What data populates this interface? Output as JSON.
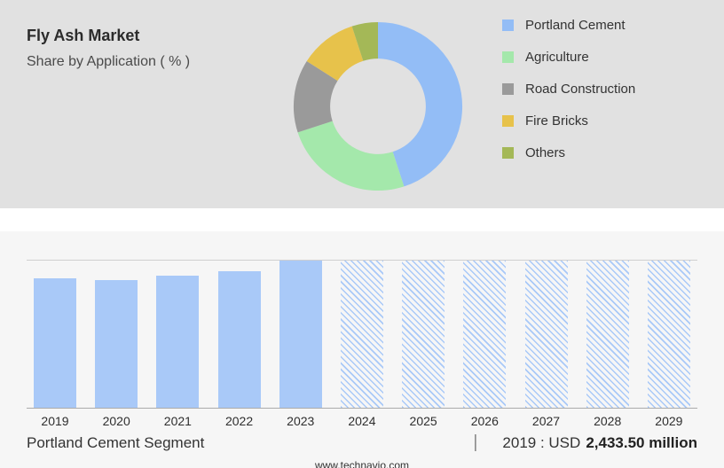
{
  "header": {
    "title": "Fly Ash Market",
    "subtitle": "Share by Application ( % )"
  },
  "chart_data": [
    {
      "type": "pie",
      "style": "donut",
      "title": "Fly Ash Market — Share by Application ( % )",
      "legend_position": "right",
      "segments": [
        {
          "label": "Portland Cement",
          "value": 45,
          "color": "#93bdf6"
        },
        {
          "label": "Agriculture",
          "value": 25,
          "color": "#a4e8ab"
        },
        {
          "label": "Road Construction",
          "value": 14,
          "color": "#9a9a9a"
        },
        {
          "label": "Fire Bricks",
          "value": 11,
          "color": "#e7c24b"
        },
        {
          "label": "Others",
          "value": 5,
          "color": "#a4b857"
        }
      ]
    },
    {
      "type": "bar",
      "categories": [
        "2019",
        "2020",
        "2021",
        "2022",
        "2023",
        "2024",
        "2025",
        "2026",
        "2027",
        "2028",
        "2029"
      ],
      "relative_heights": [
        0.88,
        0.865,
        0.9,
        0.93,
        1.0,
        1.0,
        1.0,
        1.0,
        1.0,
        1.0,
        1.0
      ],
      "forecast_categories": [
        "2024",
        "2025",
        "2026",
        "2027",
        "2028",
        "2029"
      ],
      "bar_color": "#a9c9f8",
      "values_note": "No y-axis shown; heights are fractions of the tallest (2023) bar. 2024-2029 are full-height hatched forecast bars.",
      "known_point": {
        "year": "2019",
        "label": "2019 : USD 2,433.50 million"
      },
      "xlabel": "",
      "ylabel": "",
      "grid": false
    }
  ],
  "footer_row": {
    "segment_label": "Portland Cement Segment",
    "separator": "|",
    "stat_prefix": "2019 : USD",
    "stat_value": "2,433.50 million"
  },
  "site": {
    "url": "www.technavio.com"
  }
}
